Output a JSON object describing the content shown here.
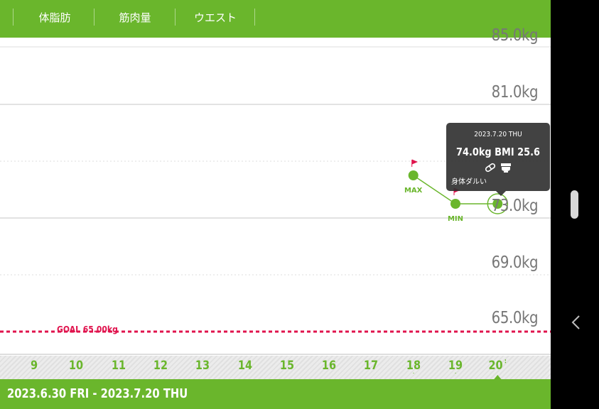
{
  "tabs": [
    {
      "label": "体脂肪"
    },
    {
      "label": "筋肉量"
    },
    {
      "label": "ウエスト"
    }
  ],
  "colors": {
    "brand_green": "#6ab62c",
    "goal_red": "#e0134d",
    "tooltip_bg": "#323232"
  },
  "chart_data": {
    "type": "line",
    "y_axis": {
      "unit": "kg",
      "tick_labels": [
        "85.0kg",
        "81.0kg",
        "73.0kg",
        "69.0kg",
        "65.0kg"
      ]
    },
    "x": [
      "9",
      "10",
      "11",
      "12",
      "13",
      "14",
      "15",
      "16",
      "17",
      "18",
      "19",
      "20"
    ],
    "series": [
      {
        "points": [
          {
            "x": "18",
            "y": 76.0,
            "label": "MAX"
          },
          {
            "x": "19",
            "y": 74.0,
            "label": "MIN"
          },
          {
            "x": "20",
            "y": 74.0
          }
        ]
      }
    ],
    "goal": {
      "label": "GOAL 65.00kg",
      "value": 65.0
    },
    "grid": true
  },
  "tooltip": {
    "date": "2023.7.20 THU",
    "weight": "74.0kg",
    "bmi": "BMI 25.6",
    "note": "身体ダルい",
    "icons": [
      "pill-icon",
      "toilet-icon"
    ]
  },
  "date_axis": {
    "days": [
      "9",
      "10",
      "11",
      "12",
      "13",
      "14",
      "15",
      "16",
      "17",
      "18",
      "19",
      "20"
    ],
    "marked_days": [
      "18",
      "19",
      "20"
    ],
    "selected": "20"
  },
  "footer": {
    "range": "2023.6.30 FRI - 2023.7.20 THU"
  }
}
